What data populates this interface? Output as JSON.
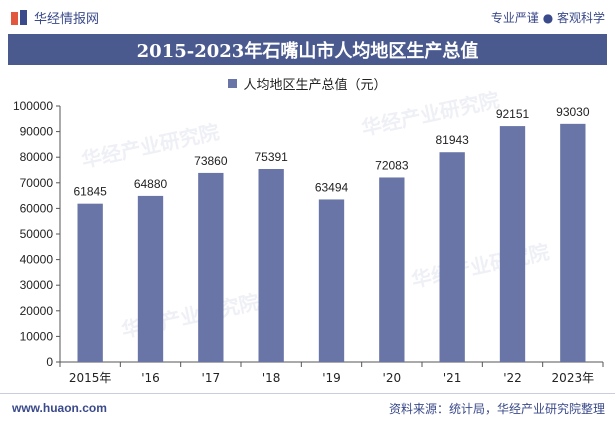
{
  "header": {
    "brand": "华经情报网",
    "tagline": "专业严谨 ● 客观科学"
  },
  "footer": {
    "url": "www.huaon.com",
    "source": "资料来源：统计局，华经产业研究院整理"
  },
  "watermark": "华经产业研究院",
  "colors": {
    "title_bg": "#4a5a8f",
    "bar": "#6975a6",
    "text_brand": "#3a4a8a"
  },
  "chart_data": {
    "type": "bar",
    "title": "2015-2023年石嘴山市人均地区生产总值",
    "categories": [
      "2015年",
      "'16",
      "'17",
      "'18",
      "'19",
      "'20",
      "'21",
      "'22",
      "2023年"
    ],
    "series": [
      {
        "name": "人均地区生产总值（元）",
        "values": [
          61845,
          64880,
          73860,
          75391,
          63494,
          72083,
          81943,
          92151,
          93030
        ]
      }
    ],
    "ylim": [
      0,
      100000
    ],
    "yticks": [
      0,
      10000,
      20000,
      30000,
      40000,
      50000,
      60000,
      70000,
      80000,
      90000,
      100000
    ],
    "grid": false,
    "legend_position": "top"
  }
}
